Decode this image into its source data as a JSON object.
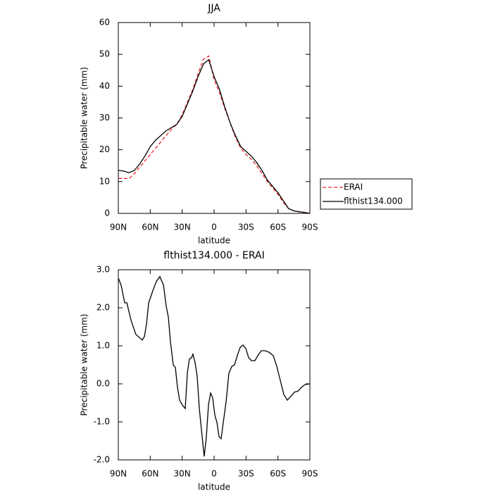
{
  "chart_data": [
    {
      "type": "line",
      "title": "JJA",
      "x_label": "latitude",
      "y_label": "Precipitable water (mm)",
      "x": [
        90,
        85,
        80,
        75,
        70,
        65,
        60,
        55,
        50,
        45,
        40,
        35,
        30,
        25,
        20,
        15,
        10,
        5,
        0,
        -5,
        -10,
        -15,
        -20,
        -25,
        -30,
        -35,
        -40,
        -45,
        -50,
        -55,
        -60,
        -65,
        -70,
        -75,
        -80,
        -85,
        -90
      ],
      "series": [
        {
          "name": "ERAI",
          "color": "#e8262b",
          "dashed": true,
          "values": [
            11,
            11,
            10.9,
            12.5,
            14.5,
            16.5,
            18.5,
            20.5,
            22.5,
            24.5,
            26.5,
            28,
            31,
            35,
            39,
            44,
            48.5,
            49.5,
            42,
            38,
            33,
            28.5,
            24,
            20.5,
            18.5,
            17,
            15,
            12.5,
            10,
            8,
            6,
            3.5,
            1.5,
            0.8,
            0.5,
            0.2,
            0
          ]
        },
        {
          "name": "flthist134.000",
          "color": "#000000",
          "dashed": false,
          "values": [
            13.5,
            13.3,
            12.8,
            13.5,
            15.5,
            18,
            21,
            23,
            24.5,
            26,
            27,
            28,
            30.5,
            34.5,
            38.5,
            43,
            47,
            48.3,
            43,
            39,
            33.5,
            28.5,
            24.5,
            21,
            19.5,
            18,
            16,
            13.5,
            10.5,
            8.5,
            6.5,
            4,
            1.5,
            0.8,
            0.5,
            0.3,
            0
          ]
        }
      ],
      "xlim": [
        90,
        -90
      ],
      "xticks": [
        {
          "value": 90,
          "label": "90N"
        },
        {
          "value": 60,
          "label": "60N"
        },
        {
          "value": 30,
          "label": "30N"
        },
        0,
        {
          "value": -30,
          "label": "30S"
        },
        {
          "value": -60,
          "label": "60S"
        },
        {
          "value": -90,
          "label": "90S"
        }
      ],
      "ylim": [
        0,
        60
      ],
      "yticks": [
        0,
        10,
        20,
        30,
        40,
        50,
        60
      ],
      "legend": "right"
    },
    {
      "type": "line",
      "title": "flthist134.000 - ERAI",
      "x_label": "latitude",
      "y_label": "Precipitable water (mm)",
      "x": [
        90,
        87.4,
        84,
        82,
        78,
        73.5,
        69.5,
        67.5,
        65.5,
        63.5,
        61.5,
        58.2,
        54.3,
        51,
        47.6,
        45,
        43,
        41,
        38.4,
        36.4,
        34.4,
        32.4,
        29.8,
        27.1,
        25.1,
        23.2,
        21.2,
        19.9,
        17.9,
        15.9,
        13.9,
        11.9,
        9.3,
        7.3,
        5.3,
        3.3,
        1.3,
        -0.7,
        -2.7,
        -4.6,
        -6.6,
        -8.6,
        -11.3,
        -13.9,
        -16.6,
        -19.2,
        -21.8,
        -24.5,
        -27.1,
        -29.8,
        -32.4,
        -35.1,
        -38.4,
        -41,
        -44.3,
        -48.3,
        -51.6,
        -55.6,
        -58.9,
        -62.2,
        -65.5,
        -68.8,
        -72.1,
        -75.4,
        -78.8,
        -82.1,
        -85.4,
        -90
      ],
      "series": [
        {
          "color": "#000000",
          "dashed": false,
          "values": [
            2.78,
            2.6,
            2.13,
            2.13,
            1.67,
            1.3,
            1.2,
            1.15,
            1.24,
            1.57,
            2.13,
            2.4,
            2.69,
            2.82,
            2.6,
            2.04,
            1.76,
            1.11,
            0.5,
            0.43,
            -0.09,
            -0.43,
            -0.56,
            -0.65,
            0.3,
            0.65,
            0.69,
            0.78,
            0.56,
            0.19,
            -0.65,
            -1.2,
            -1.91,
            -1.4,
            -0.56,
            -0.24,
            -0.37,
            -0.83,
            -1.02,
            -1.39,
            -1.44,
            -1.02,
            -0.46,
            0.28,
            0.46,
            0.5,
            0.74,
            0.96,
            1.02,
            0.93,
            0.69,
            0.61,
            0.61,
            0.74,
            0.87,
            0.87,
            0.83,
            0.74,
            0.46,
            0.09,
            -0.28,
            -0.43,
            -0.33,
            -0.22,
            -0.19,
            -0.09,
            -0.02,
            0
          ]
        }
      ],
      "xlim": [
        90,
        -90
      ],
      "xticks": [
        {
          "value": 90,
          "label": "90N"
        },
        {
          "value": 60,
          "label": "60N"
        },
        {
          "value": 30,
          "label": "30N"
        },
        0,
        {
          "value": -30,
          "label": "30S"
        },
        {
          "value": -60,
          "label": "60S"
        },
        {
          "value": -90,
          "label": "90S"
        }
      ],
      "ylim": [
        -2,
        3
      ],
      "yticks": [
        {
          "value": -2,
          "label": "-2.0"
        },
        {
          "value": -1,
          "label": "-1.0"
        },
        {
          "value": 0,
          "label": "0.0"
        },
        {
          "value": 1,
          "label": "1.0"
        },
        {
          "value": 2,
          "label": "2.0"
        },
        {
          "value": 3,
          "label": "3.0"
        }
      ]
    }
  ]
}
